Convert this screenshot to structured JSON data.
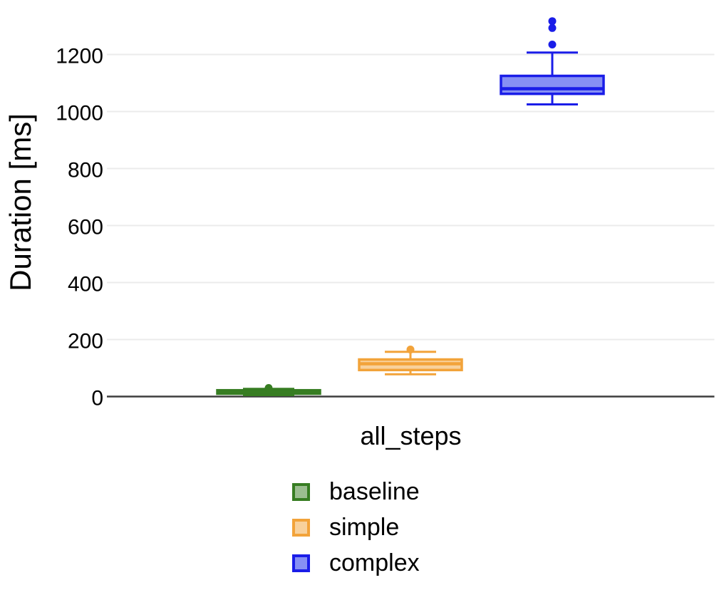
{
  "chart_data": {
    "type": "boxplot",
    "title": "",
    "xlabel": "all_steps",
    "ylabel": "Duration [ms]",
    "categories": [
      "all_steps"
    ],
    "yticks": [
      0,
      200,
      400,
      600,
      800,
      1000,
      1200
    ],
    "ylim": [
      0,
      1390
    ],
    "grid": true,
    "legend_position": "bottom-left",
    "gridline_color": "#ebebeb",
    "axis_line_color": "#3d3d3d",
    "series": [
      {
        "name": "baseline",
        "color": "#377d22",
        "fill": "#9bbe90",
        "low": 5,
        "q1": 10,
        "median": 16,
        "q3": 22,
        "high": 27,
        "outliers": [
          30
        ]
      },
      {
        "name": "simple",
        "color": "#f2a33a",
        "fill": "#f8d19c",
        "low": 78,
        "q1": 93,
        "median": 115,
        "q3": 130,
        "high": 157,
        "outliers": [
          165
        ]
      },
      {
        "name": "complex",
        "color": "#1a1de8",
        "fill": "#8790f4",
        "low": 1025,
        "q1": 1062,
        "median": 1080,
        "q3": 1125,
        "high": 1207,
        "outliers": [
          1235,
          1293,
          1317
        ]
      }
    ]
  }
}
